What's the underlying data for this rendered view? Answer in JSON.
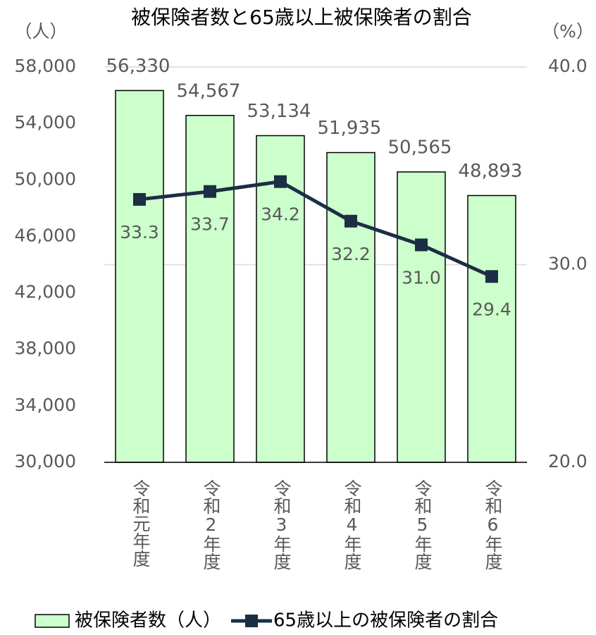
{
  "chart_data": {
    "type": "bar",
    "title": "被保険者数と65歳以上被保険者の割合",
    "y_label": "（人）",
    "y2_label": "（%）",
    "categories": [
      "令和元年度",
      "令和2年度",
      "令和3年度",
      "令和4年度",
      "令和5年度",
      "令和6年度"
    ],
    "series": [
      {
        "name": "被保険者数（人）",
        "type": "bar",
        "color": "#ccffcc",
        "values": [
          56330,
          54567,
          53134,
          51935,
          50565,
          48893
        ],
        "value_labels": [
          "56,330",
          "54,567",
          "53,134",
          "51,935",
          "50,565",
          "48,893"
        ]
      },
      {
        "name": "65歳以上の被保険者の割合",
        "type": "line",
        "axis": "y2",
        "color": "#1c2e44",
        "values": [
          33.3,
          33.7,
          34.2,
          32.2,
          31.0,
          29.4
        ],
        "value_labels": [
          "33.3",
          "33.7",
          "34.2",
          "32.2",
          "31.0",
          "29.4"
        ]
      }
    ],
    "ylim": [
      30000,
      58000
    ],
    "yticks": [
      {
        "value": 30000,
        "label": "30,000"
      },
      {
        "value": 34000,
        "label": "34,000"
      },
      {
        "value": 38000,
        "label": "38,000"
      },
      {
        "value": 42000,
        "label": "42,000"
      },
      {
        "value": 46000,
        "label": "46,000"
      },
      {
        "value": 50000,
        "label": "50,000"
      },
      {
        "value": 54000,
        "label": "54,000"
      },
      {
        "value": 58000,
        "label": "58,000"
      }
    ],
    "y2lim": [
      20,
      40
    ],
    "y2ticks": [
      {
        "value": 20,
        "label": "20.0"
      },
      {
        "value": 30,
        "label": "30.0"
      },
      {
        "value": 40,
        "label": "40.0"
      }
    ],
    "grid": true,
    "legend": "bottom"
  }
}
